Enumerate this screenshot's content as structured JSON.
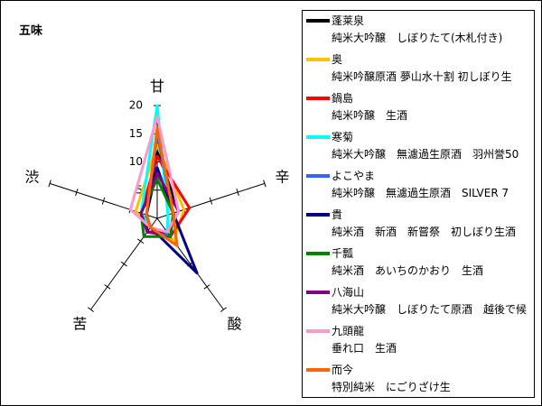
{
  "chart_data": {
    "type": "radar",
    "title": "五味",
    "axes": [
      "甘",
      "辛",
      "酸",
      "苦",
      "渋"
    ],
    "rlim": [
      0,
      20
    ],
    "r_ticks": [
      5,
      10,
      15,
      20
    ],
    "grid": false,
    "legend_position": "right",
    "series": [
      {
        "name": "蓬莱泉",
        "desc": "純米大吟醸　しぼりたて(木札付き)",
        "color": "#000000",
        "values": [
          12,
          4,
          3,
          3,
          2
        ]
      },
      {
        "name": "奥",
        "desc": "純米吟醸原酒 夢山水十割 初しぼり生",
        "color": "#ffc000",
        "values": [
          13,
          5,
          5,
          2,
          4
        ]
      },
      {
        "name": "鍋島",
        "desc": "純米吟醸　生酒",
        "color": "#ff0000",
        "values": [
          11,
          6,
          4,
          3,
          3
        ]
      },
      {
        "name": "寒菊",
        "desc": "純米大吟醸　無濾過生原酒　羽州誉50",
        "color": "#00ffff",
        "values": [
          20,
          2,
          3,
          2,
          3
        ]
      },
      {
        "name": "よこやま",
        "desc": "純米吟醸　無濾過生原酒　SILVER 7",
        "color": "#3366ff",
        "values": [
          15,
          3,
          4,
          2,
          2
        ]
      },
      {
        "name": "貴",
        "desc": "純米酒　新酒　新嘗祭　初しぼり生酒",
        "color": "#000080",
        "values": [
          9,
          3,
          12,
          2,
          2
        ]
      },
      {
        "name": "千瓢",
        "desc": "純米酒　あいちのかおり　生酒",
        "color": "#008000",
        "values": [
          7,
          3,
          4,
          4,
          3
        ]
      },
      {
        "name": "八海山",
        "desc": "純米大吟醸　しぼりたて原酒　越後で候",
        "color": "#800080",
        "values": [
          8,
          4,
          3,
          3,
          3
        ]
      },
      {
        "name": "九頭龍",
        "desc": "垂れ口　生酒",
        "color": "#ff99cc",
        "values": [
          18,
          4,
          3,
          2,
          5
        ]
      },
      {
        "name": "而今",
        "desc": "特別純米　にごりざけ生",
        "color": "#ff6600",
        "values": [
          16,
          3,
          6,
          2,
          2
        ]
      }
    ]
  }
}
